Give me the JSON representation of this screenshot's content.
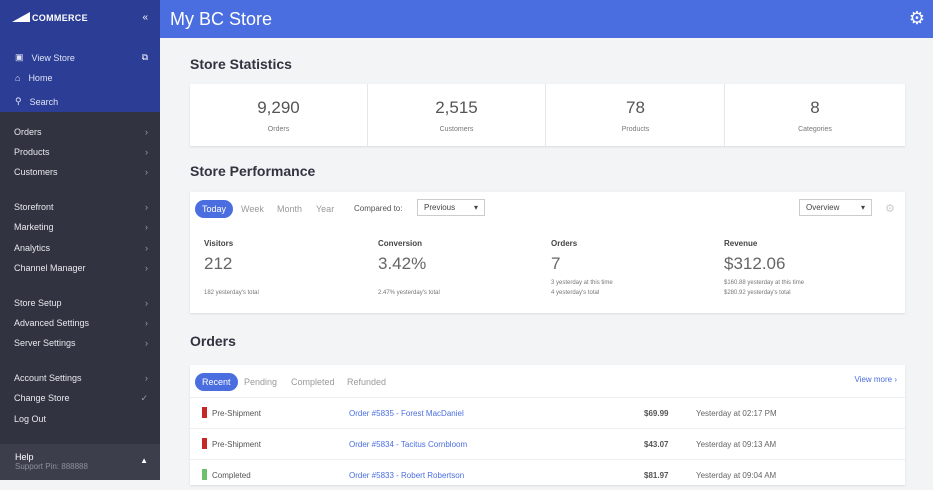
{
  "sidebar": {
    "logo": "COMMERCE",
    "view_store": "View Store",
    "home": "Home",
    "search": "Search",
    "items": [
      "Orders",
      "Products",
      "Customers",
      "Storefront",
      "Marketing",
      "Analytics",
      "Channel Manager",
      "Store Setup",
      "Advanced Settings",
      "Server Settings",
      "Account Settings",
      "Change Store",
      "Log Out"
    ],
    "help": "Help",
    "support_pin": "Support Pin: 888888"
  },
  "header": {
    "title": "My BC Store"
  },
  "stats": {
    "title": "Store Statistics",
    "items": [
      {
        "value": "9,290",
        "label": "Orders"
      },
      {
        "value": "2,515",
        "label": "Customers"
      },
      {
        "value": "78",
        "label": "Products"
      },
      {
        "value": "8",
        "label": "Categories"
      }
    ]
  },
  "performance": {
    "title": "Store Performance",
    "tabs": [
      "Today",
      "Week",
      "Month",
      "Year"
    ],
    "compared_label": "Compared to:",
    "compared_value": "Previous",
    "view_value": "Overview",
    "metrics": [
      {
        "label": "Visitors",
        "value": "212",
        "sub1": "",
        "sub2": "182 yesterday's total"
      },
      {
        "label": "Conversion",
        "value": "3.42%",
        "sub1": "",
        "sub2": "2.47% yesterday's total"
      },
      {
        "label": "Orders",
        "value": "7",
        "sub1": "3 yesterday at this time",
        "sub2": "4 yesterday's total"
      },
      {
        "label": "Revenue",
        "value": "$312.06",
        "sub1": "$160.88 yesterday at this time",
        "sub2": "$280.92 yesterday's total"
      }
    ]
  },
  "orders": {
    "title": "Orders",
    "tabs": [
      "Recent",
      "Pending",
      "Completed",
      "Refunded"
    ],
    "view_more": "View more ›",
    "rows": [
      {
        "status": "Pre-Shipment",
        "color": "#c62828",
        "order": "Order #5835 - Forest MacDaniel",
        "amount": "$69.99",
        "date": "Yesterday at 02:17 PM"
      },
      {
        "status": "Pre-Shipment",
        "color": "#c62828",
        "order": "Order #5834 - Tacitus Cornbloom",
        "amount": "$43.07",
        "date": "Yesterday at 09:13 AM"
      },
      {
        "status": "Completed",
        "color": "#6cc26c",
        "order": "Order #5833 - Robert Robertson",
        "amount": "$81.97",
        "date": "Yesterday at 09:04 AM"
      }
    ]
  }
}
